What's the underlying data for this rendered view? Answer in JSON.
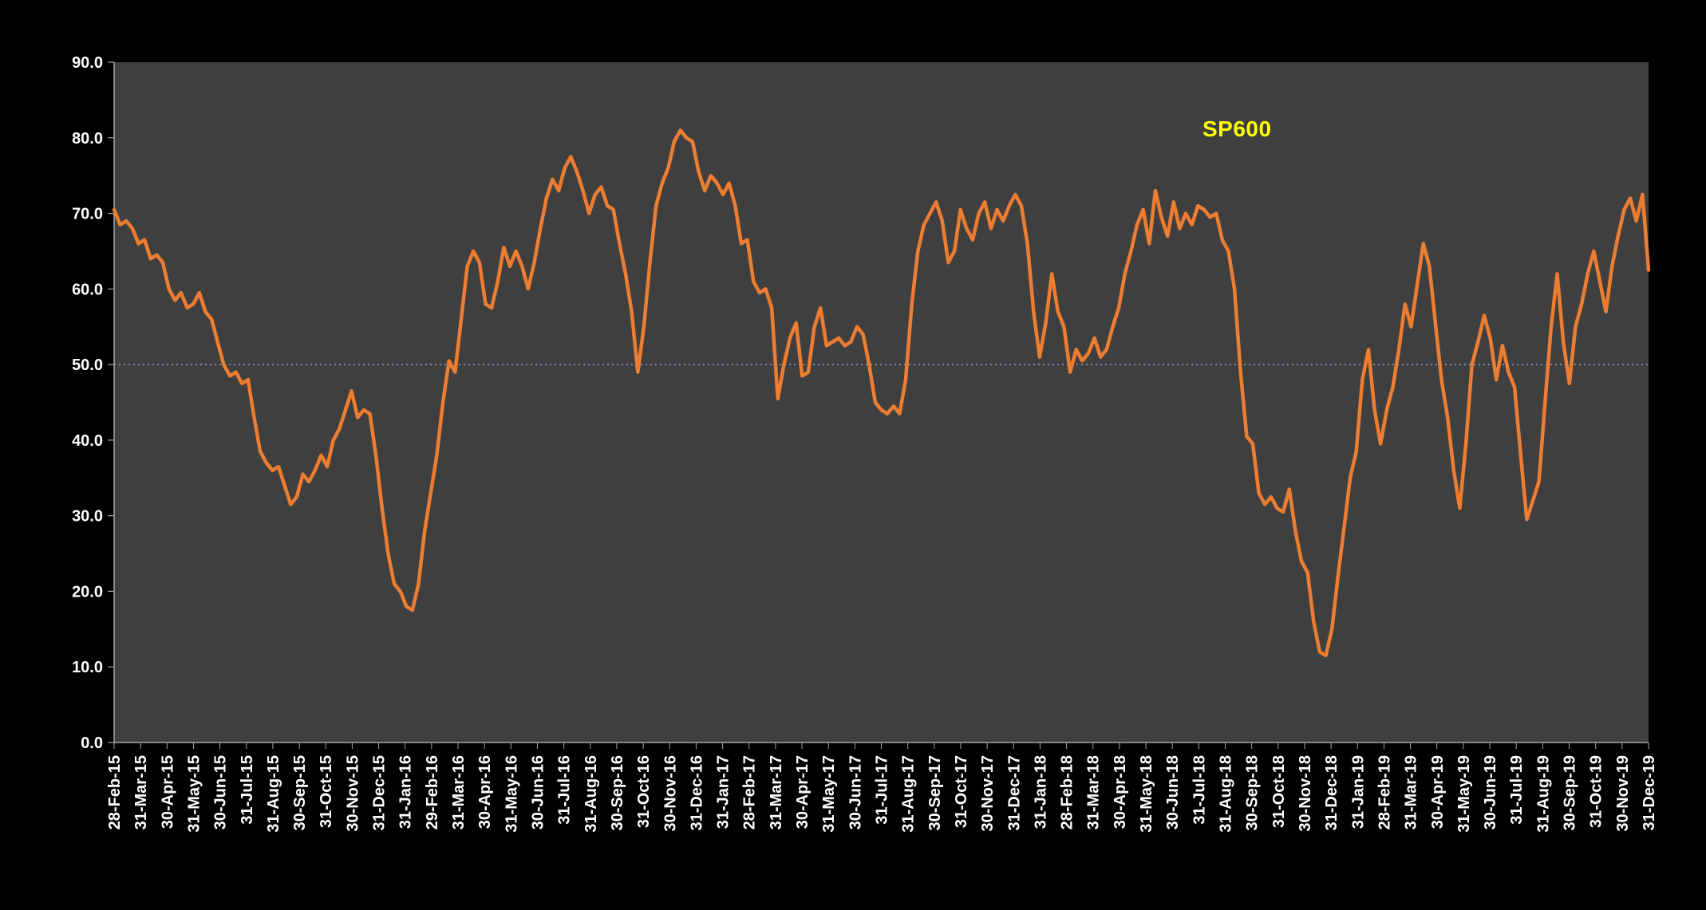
{
  "chart_data": {
    "type": "line",
    "title": "",
    "series_label": "SP600",
    "series_label_color": "#FFFF00",
    "line_color": "#ED7D31",
    "plot_bg": "#3F3F3F",
    "page_bg": "#000000",
    "axis_color": "#A6A6A6",
    "label_color": "#FFFFFF",
    "grid": false,
    "legend_position": "top-right-inside",
    "ylim": [
      0,
      90
    ],
    "ytick_step": 10,
    "y_tick_labels": [
      "0.0",
      "10.0",
      "20.0",
      "30.0",
      "40.0",
      "50.0",
      "60.0",
      "70.0",
      "80.0",
      "90.0"
    ],
    "reference_line": {
      "value": 50.0,
      "color": "#8FAADC",
      "style": "dotted"
    },
    "x_tick_labels": [
      "28-Feb-15",
      "31-Mar-15",
      "30-Apr-15",
      "31-May-15",
      "30-Jun-15",
      "31-Jul-15",
      "31-Aug-15",
      "30-Sep-15",
      "31-Oct-15",
      "30-Nov-15",
      "31-Dec-15",
      "31-Jan-16",
      "29-Feb-16",
      "31-Mar-16",
      "30-Apr-16",
      "31-May-16",
      "30-Jun-16",
      "31-Jul-16",
      "31-Aug-16",
      "30-Sep-16",
      "31-Oct-16",
      "30-Nov-16",
      "31-Dec-16",
      "31-Jan-17",
      "28-Feb-17",
      "31-Mar-17",
      "30-Apr-17",
      "31-May-17",
      "30-Jun-17",
      "31-Jul-17",
      "31-Aug-17",
      "30-Sep-17",
      "31-Oct-17",
      "30-Nov-17",
      "31-Dec-17",
      "31-Jan-18",
      "28-Feb-18",
      "31-Mar-18",
      "30-Apr-18",
      "31-May-18",
      "30-Jun-18",
      "31-Jul-18",
      "31-Aug-18",
      "30-Sep-18",
      "31-Oct-18",
      "30-Nov-18",
      "31-Dec-18",
      "31-Jan-19",
      "28-Feb-19",
      "31-Mar-19",
      "30-Apr-19",
      "31-May-19",
      "30-Jun-19",
      "31-Jul-19",
      "31-Aug-19",
      "30-Sep-19",
      "31-Oct-19",
      "30-Nov-19",
      "31-Dec-19"
    ],
    "values": [
      70.5,
      68.5,
      69.0,
      68.0,
      66.0,
      66.5,
      64.0,
      64.5,
      63.5,
      60.0,
      58.5,
      59.5,
      57.5,
      58.0,
      59.5,
      57.0,
      56.0,
      53.0,
      50.0,
      48.5,
      49.0,
      47.5,
      48.0,
      43.0,
      38.5,
      37.0,
      36.0,
      36.5,
      34.0,
      31.5,
      32.5,
      35.5,
      34.5,
      36.0,
      38.0,
      36.5,
      40.0,
      41.5,
      44.0,
      46.5,
      43.0,
      44.0,
      43.5,
      38.0,
      31.0,
      25.0,
      21.0,
      20.0,
      18.0,
      17.5,
      21.0,
      28.0,
      33.0,
      38.0,
      45.0,
      50.5,
      49.0,
      56.0,
      63.0,
      65.0,
      63.5,
      58.0,
      57.5,
      61.0,
      65.5,
      63.0,
      65.0,
      63.0,
      60.0,
      63.5,
      68.0,
      72.0,
      74.5,
      73.0,
      76.0,
      77.5,
      75.5,
      73.0,
      70.0,
      72.5,
      73.5,
      71.0,
      70.5,
      66.0,
      62.0,
      57.0,
      49.0,
      55.0,
      63.5,
      71.0,
      74.0,
      76.0,
      79.5,
      81.0,
      80.0,
      79.5,
      75.5,
      73.0,
      75.0,
      74.0,
      72.5,
      74.0,
      71.0,
      66.0,
      66.5,
      61.0,
      59.5,
      60.0,
      57.5,
      45.5,
      50.0,
      53.5,
      55.5,
      48.5,
      49.0,
      55.0,
      57.5,
      52.5,
      53.0,
      53.5,
      52.5,
      53.0,
      55.0,
      54.0,
      50.0,
      45.0,
      44.0,
      43.5,
      44.5,
      43.5,
      48.0,
      58.0,
      65.0,
      68.5,
      70.0,
      71.5,
      69.0,
      63.5,
      65.0,
      70.5,
      68.0,
      66.5,
      70.0,
      71.5,
      68.0,
      70.5,
      69.0,
      71.0,
      72.5,
      71.0,
      66.0,
      57.0,
      51.0,
      55.5,
      62.0,
      57.0,
      55.0,
      49.0,
      52.0,
      50.5,
      51.5,
      53.5,
      51.0,
      52.0,
      55.0,
      57.5,
      62.0,
      65.0,
      68.5,
      70.5,
      66.0,
      73.0,
      69.5,
      67.0,
      71.5,
      68.0,
      70.0,
      68.5,
      71.0,
      70.5,
      69.5,
      70.0,
      66.5,
      65.0,
      60.0,
      49.0,
      40.5,
      39.5,
      33.0,
      31.5,
      32.5,
      31.0,
      30.5,
      33.5,
      28.0,
      24.0,
      22.5,
      16.0,
      12.0,
      11.5,
      15.0,
      22.0,
      28.5,
      35.0,
      38.5,
      48.0,
      52.0,
      44.0,
      39.5,
      44.0,
      47.0,
      52.0,
      58.0,
      55.0,
      60.5,
      66.0,
      63.0,
      55.5,
      48.0,
      43.0,
      36.0,
      31.0,
      39.5,
      50.0,
      53.0,
      56.5,
      53.5,
      48.0,
      52.5,
      49.0,
      47.0,
      38.0,
      29.5,
      32.0,
      34.5,
      45.0,
      55.0,
      62.0,
      53.0,
      47.5,
      55.0,
      58.0,
      62.0,
      65.0,
      61.0,
      57.0,
      63.0,
      67.0,
      70.5,
      72.0,
      69.0,
      72.5,
      62.5
    ]
  }
}
